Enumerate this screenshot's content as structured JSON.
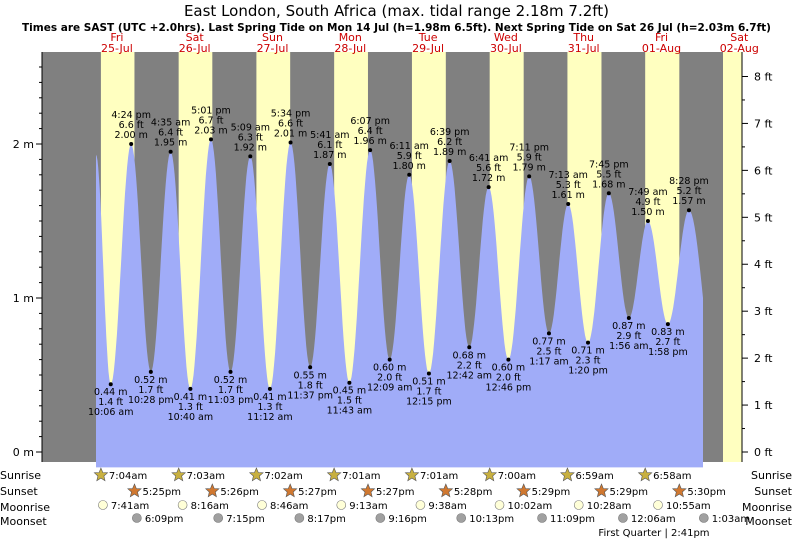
{
  "header": {
    "title": "East London, South Africa (max. tidal range 2.18m 7.2ft)",
    "subtitle": "Times are SAST (UTC +2.0hrs). Last Spring Tide on Mon 14 Jul (h=1.98m 6.5ft). Next Spring Tide on Sat 26 Jul (h=2.03m 6.7ft)"
  },
  "days": [
    {
      "dow": "Fri",
      "date": "25-Jul"
    },
    {
      "dow": "Sat",
      "date": "26-Jul"
    },
    {
      "dow": "Sun",
      "date": "27-Jul"
    },
    {
      "dow": "Mon",
      "date": "28-Jul"
    },
    {
      "dow": "Tue",
      "date": "29-Jul"
    },
    {
      "dow": "Wed",
      "date": "30-Jul"
    },
    {
      "dow": "Thu",
      "date": "31-Jul"
    },
    {
      "dow": "Fri",
      "date": "01-Aug"
    },
    {
      "dow": "Sat",
      "date": "02-Aug"
    }
  ],
  "astro": {
    "labels": {
      "sunrise": "Sunrise",
      "sunset": "Sunset",
      "moonrise": "Moonrise",
      "moonset": "Moonset"
    },
    "sunrise": [
      "7:04am",
      "7:03am",
      "7:02am",
      "7:01am",
      "7:01am",
      "7:00am",
      "6:59am",
      "6:58am"
    ],
    "sunset": [
      "5:25pm",
      "5:26pm",
      "5:27pm",
      "5:27pm",
      "5:28pm",
      "5:29pm",
      "5:29pm",
      "5:30pm"
    ],
    "moonrise": [
      "7:41am",
      "8:16am",
      "8:46am",
      "9:13am",
      "9:38am",
      "10:02am",
      "10:28am",
      "10:55am"
    ],
    "moonset": [
      "6:09pm",
      "7:15pm",
      "8:17pm",
      "9:16pm",
      "10:13pm",
      "11:09pm",
      "12:06am",
      "1:03am"
    ],
    "moon_phase": "First Quarter | 2:41pm"
  },
  "chart_data": {
    "type": "area",
    "y_left": {
      "unit": "m",
      "ticks": [
        "0 m",
        "1 m",
        "2 m"
      ],
      "range": [
        -0.1,
        2.6
      ]
    },
    "y_right": {
      "unit": "ft",
      "ticks": [
        "0 ft",
        "1 ft",
        "2 ft",
        "3 ft",
        "4 ft",
        "5 ft",
        "6 ft",
        "7 ft",
        "8 ft"
      ]
    },
    "x_range_days": [
      "25-Jul",
      "02-Aug"
    ],
    "tides": [
      {
        "type": "low",
        "time": "10:06 am",
        "m": "0.44 m",
        "ft": "1.4 ft",
        "hm": 0.44,
        "day": 0,
        "hour": 10.1
      },
      {
        "type": "high",
        "time": "4:24 pm",
        "m": "2.00 m",
        "ft": "6.6 ft",
        "hm": 2.0,
        "day": 0,
        "hour": 16.4
      },
      {
        "type": "low",
        "time": "10:28 pm",
        "m": "0.52 m",
        "ft": "1.7 ft",
        "hm": 0.52,
        "day": 0,
        "hour": 22.47
      },
      {
        "type": "high",
        "time": "4:35 am",
        "m": "1.95 m",
        "ft": "6.4 ft",
        "hm": 1.95,
        "day": 1,
        "hour": 4.58
      },
      {
        "type": "low",
        "time": "10:40 am",
        "m": "0.41 m",
        "ft": "1.3 ft",
        "hm": 0.41,
        "day": 1,
        "hour": 10.67
      },
      {
        "type": "high",
        "time": "5:01 pm",
        "m": "2.03 m",
        "ft": "6.7 ft",
        "hm": 2.03,
        "day": 1,
        "hour": 17.02
      },
      {
        "type": "low",
        "time": "11:03 pm",
        "m": "0.52 m",
        "ft": "1.7 ft",
        "hm": 0.52,
        "day": 1,
        "hour": 23.05
      },
      {
        "type": "high",
        "time": "5:09 am",
        "m": "1.92 m",
        "ft": "6.3 ft",
        "hm": 1.92,
        "day": 2,
        "hour": 5.15
      },
      {
        "type": "low",
        "time": "11:12 am",
        "m": "0.41 m",
        "ft": "1.3 ft",
        "hm": 0.41,
        "day": 2,
        "hour": 11.2
      },
      {
        "type": "high",
        "time": "5:34 pm",
        "m": "2.01 m",
        "ft": "6.6 ft",
        "hm": 2.01,
        "day": 2,
        "hour": 17.57
      },
      {
        "type": "low",
        "time": "11:37 pm",
        "m": "0.55 m",
        "ft": "1.8 ft",
        "hm": 0.55,
        "day": 2,
        "hour": 23.62
      },
      {
        "type": "high",
        "time": "5:41 am",
        "m": "1.87 m",
        "ft": "6.1 ft",
        "hm": 1.87,
        "day": 3,
        "hour": 5.68
      },
      {
        "type": "low",
        "time": "11:43 am",
        "m": "0.45 m",
        "ft": "1.5 ft",
        "hm": 0.45,
        "day": 3,
        "hour": 11.72
      },
      {
        "type": "high",
        "time": "6:07 pm",
        "m": "1.96 m",
        "ft": "6.4 ft",
        "hm": 1.96,
        "day": 3,
        "hour": 18.12
      },
      {
        "type": "low",
        "time": "12:09 am",
        "m": "0.60 m",
        "ft": "2.0 ft",
        "hm": 0.6,
        "day": 4,
        "hour": 0.15
      },
      {
        "type": "high",
        "time": "6:11 am",
        "m": "1.80 m",
        "ft": "5.9 ft",
        "hm": 1.8,
        "day": 4,
        "hour": 6.18
      },
      {
        "type": "low",
        "time": "12:15 pm",
        "m": "0.51 m",
        "ft": "1.7 ft",
        "hm": 0.51,
        "day": 4,
        "hour": 12.25
      },
      {
        "type": "high",
        "time": "6:39 pm",
        "m": "1.89 m",
        "ft": "6.2 ft",
        "hm": 1.89,
        "day": 4,
        "hour": 18.65
      },
      {
        "type": "low",
        "time": "12:42 am",
        "m": "0.68 m",
        "ft": "2.2 ft",
        "hm": 0.68,
        "day": 5,
        "hour": 0.7
      },
      {
        "type": "high",
        "time": "6:41 am",
        "m": "1.72 m",
        "ft": "5.6 ft",
        "hm": 1.72,
        "day": 5,
        "hour": 6.68
      },
      {
        "type": "low",
        "time": "12:46 pm",
        "m": "0.60 m",
        "ft": "2.0 ft",
        "hm": 0.6,
        "day": 5,
        "hour": 12.77
      },
      {
        "type": "high",
        "time": "7:11 pm",
        "m": "1.79 m",
        "ft": "5.9 ft",
        "hm": 1.79,
        "day": 5,
        "hour": 19.18
      },
      {
        "type": "low",
        "time": "1:17 am",
        "m": "0.77 m",
        "ft": "2.5 ft",
        "hm": 0.77,
        "day": 6,
        "hour": 1.28
      },
      {
        "type": "high",
        "time": "7:13 am",
        "m": "1.61 m",
        "ft": "5.3 ft",
        "hm": 1.61,
        "day": 6,
        "hour": 7.22
      },
      {
        "type": "low",
        "time": "1:20 pm",
        "m": "0.71 m",
        "ft": "2.3 ft",
        "hm": 0.71,
        "day": 6,
        "hour": 13.33
      },
      {
        "type": "high",
        "time": "7:45 pm",
        "m": "1.68 m",
        "ft": "5.5 ft",
        "hm": 1.68,
        "day": 6,
        "hour": 19.75
      },
      {
        "type": "low",
        "time": "1:56 am",
        "m": "0.87 m",
        "ft": "2.9 ft",
        "hm": 0.87,
        "day": 7,
        "hour": 1.93
      },
      {
        "type": "high",
        "time": "7:49 am",
        "m": "1.50 m",
        "ft": "4.9 ft",
        "hm": 1.5,
        "day": 7,
        "hour": 7.82
      },
      {
        "type": "low",
        "time": "1:58 pm",
        "m": "0.83 m",
        "ft": "2.7 ft",
        "hm": 0.83,
        "day": 7,
        "hour": 13.97
      },
      {
        "type": "high",
        "time": "8:28 pm",
        "m": "1.57 m",
        "ft": "5.2 ft",
        "hm": 1.57,
        "day": 7,
        "hour": 20.47
      }
    ],
    "colors": {
      "night": "#808080",
      "day": "#ffffc0",
      "water": "#a0acf8",
      "sun_rise": "#c8b040",
      "sun_set": "#d07830",
      "moon_rise": "#ffffd8",
      "moon_set": "#a0a0a0"
    }
  }
}
